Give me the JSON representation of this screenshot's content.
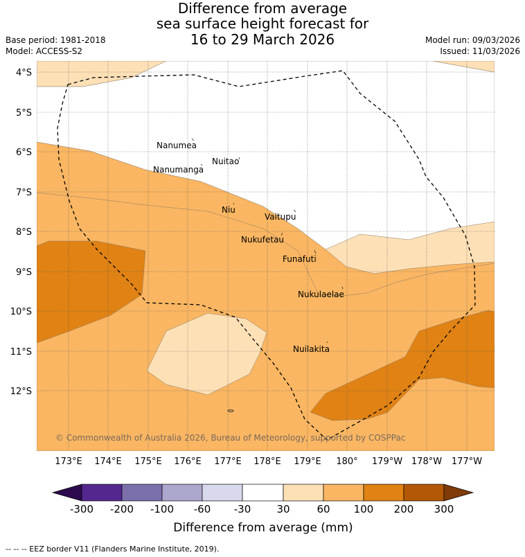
{
  "title": {
    "line1": "Difference from average",
    "line2": "sea surface height forecast for",
    "line3": "16 to 29 March 2026"
  },
  "meta": {
    "base_period": "Base period: 1981-2018",
    "model": "Model: ACCESS-S2",
    "model_run": "Model run: 09/03/2026",
    "issued": "Issued: 11/03/2026"
  },
  "axes": {
    "lat_labels": [
      "4°S",
      "5°S",
      "6°S",
      "7°S",
      "8°S",
      "9°S",
      "10°S",
      "11°S",
      "12°S"
    ],
    "lon_labels": [
      "173°E",
      "174°E",
      "175°E",
      "176°E",
      "177°E",
      "178°E",
      "179°E",
      "180°",
      "179°W",
      "178°W",
      "177°W"
    ]
  },
  "places": [
    {
      "name": "Nanumea"
    },
    {
      "name": "Nuitao"
    },
    {
      "name": "Nanumanga"
    },
    {
      "name": "Niu"
    },
    {
      "name": "Vaitupu"
    },
    {
      "name": "Nukufetau"
    },
    {
      "name": "Funafuti"
    },
    {
      "name": "Nukulaelae"
    },
    {
      "name": "Nuilakita"
    }
  ],
  "copyright": "© Commonwealth of Australia 2026, Bureau of Meteorology, supported by COSPPac",
  "colorbar": {
    "ticks": [
      "-300",
      "-200",
      "-100",
      "-60",
      "-30",
      "30",
      "60",
      "100",
      "200",
      "300"
    ],
    "colors": [
      "#2d0a4e",
      "#54278f",
      "#7b6fac",
      "#aca7cd",
      "#d9d9ed",
      "#ffffff",
      "#fde0b6",
      "#fab662",
      "#e08214",
      "#b35806",
      "#7f3b08"
    ],
    "label": "Difference from average (mm)"
  },
  "legend_note": "--  --  -- EEZ border V11 (Flanders Marine Institute, 2019)."
}
